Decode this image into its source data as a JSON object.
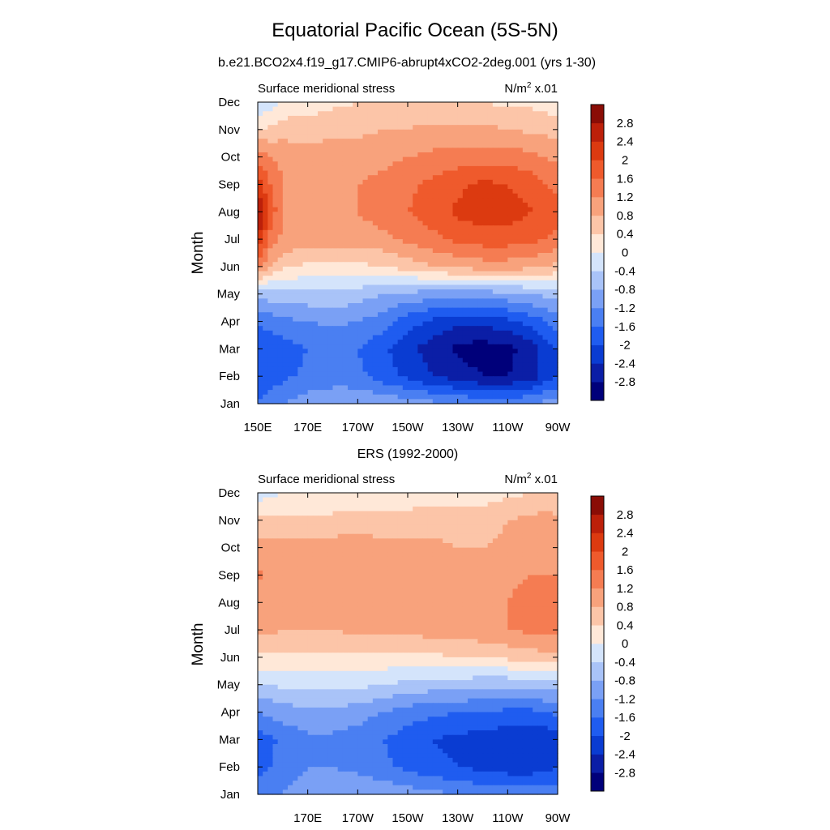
{
  "chart_data": {
    "type": "heatmap",
    "title": "Equatorial Pacific Ocean (5S-5N)",
    "subtitle": "b.e21.BCO2x4.f19_g17.CMIP6-abrupt4xCO2-2deg.001 (yrs 1-30)",
    "colorbar": {
      "colors": [
        "#00007a",
        "#0b1ea6",
        "#0a3cd2",
        "#1f5cf0",
        "#4a7ff2",
        "#7aa0f5",
        "#a9c3f8",
        "#d4e4fb",
        "#ffe8d8",
        "#fcc5a8",
        "#f8a27c",
        "#f57c52",
        "#ef5a2c",
        "#dc3a10",
        "#bc200a",
        "#8a0d06"
      ],
      "labels": [
        "-2.8",
        "-2.4",
        "-2",
        "-1.6",
        "-1.2",
        "-0.8",
        "-0.4",
        "0",
        "0.4",
        "0.8",
        "1.2",
        "1.6",
        "2",
        "2.4",
        "2.8"
      ],
      "levels": [
        -2.8,
        -2.4,
        -2.0,
        -1.6,
        -1.2,
        -0.8,
        -0.4,
        0,
        0.4,
        0.8,
        1.2,
        1.6,
        2.0,
        2.4,
        2.8
      ]
    },
    "panels": [
      {
        "id": "model",
        "title": "",
        "left_label": "Surface meridional stress",
        "unit_base": "N/m",
        "unit_sup": "2",
        "unit_scale": " x.01",
        "ylabel": "Month",
        "xlim": [
          150,
          270
        ],
        "xticks": [
          "150E",
          "170E",
          "170W",
          "150W",
          "130W",
          "110W",
          "90W"
        ],
        "yticks": [
          "Jan",
          "Feb",
          "Mar",
          "Apr",
          "May",
          "Jun",
          "Jul",
          "Aug",
          "Sep",
          "Oct",
          "Nov",
          "Dec"
        ],
        "field": {
          "lon": [
            150,
            155,
            160,
            170,
            180,
            190,
            200,
            210,
            220,
            230,
            240,
            250,
            260,
            265,
            270
          ],
          "months": [
            "Jan",
            "Feb",
            "Mar",
            "Apr",
            "May",
            "Jun",
            "Jul",
            "Aug",
            "Sep",
            "Oct",
            "Nov",
            "Dec"
          ],
          "values": [
            [
              -1.6,
              -1.4,
              -1.2,
              -1.0,
              -0.9,
              -0.8,
              -0.9,
              -1.0,
              -1.1,
              -1.2,
              -1.3,
              -1.3,
              -1.2,
              -1.1,
              -1.0
            ],
            [
              -1.9,
              -1.8,
              -1.7,
              -1.5,
              -1.4,
              -1.5,
              -1.8,
              -2.1,
              -2.4,
              -2.6,
              -2.8,
              -2.8,
              -2.6,
              -2.2,
              -2.0
            ],
            [
              -2.0,
              -1.9,
              -1.8,
              -1.6,
              -1.5,
              -1.6,
              -1.9,
              -2.3,
              -2.6,
              -2.9,
              -3.0,
              -2.9,
              -2.6,
              -2.2,
              -2.0
            ],
            [
              -1.6,
              -1.4,
              -1.3,
              -1.2,
              -1.1,
              -1.2,
              -1.4,
              -1.8,
              -2.1,
              -2.3,
              -2.3,
              -2.1,
              -1.8,
              -1.6,
              -1.4
            ],
            [
              -0.7,
              -0.6,
              -0.6,
              -0.5,
              -0.5,
              -0.6,
              -0.8,
              -0.9,
              -1.0,
              -1.0,
              -1.0,
              -0.9,
              -0.8,
              -0.7,
              -0.6
            ],
            [
              1.4,
              0.8,
              0.5,
              0.3,
              0.3,
              0.3,
              0.4,
              0.6,
              0.8,
              0.9,
              1.0,
              1.0,
              0.9,
              0.8,
              0.7
            ],
            [
              2.4,
              1.4,
              1.1,
              1.0,
              1.0,
              1.0,
              1.1,
              1.3,
              1.5,
              1.7,
              1.8,
              1.8,
              1.7,
              1.6,
              1.5
            ],
            [
              2.9,
              1.9,
              1.2,
              1.1,
              1.1,
              1.2,
              1.4,
              1.6,
              1.8,
              2.1,
              2.2,
              2.2,
              2.0,
              1.8,
              1.7
            ],
            [
              2.2,
              1.6,
              1.2,
              1.1,
              1.1,
              1.2,
              1.3,
              1.5,
              1.7,
              1.9,
              2.1,
              2.0,
              1.8,
              1.6,
              1.5
            ],
            [
              1.4,
              1.2,
              1.1,
              1.0,
              1.0,
              1.0,
              1.1,
              1.2,
              1.3,
              1.4,
              1.4,
              1.4,
              1.3,
              1.2,
              1.1
            ],
            [
              0.4,
              0.5,
              0.6,
              0.6,
              0.7,
              0.7,
              0.8,
              0.8,
              0.9,
              0.9,
              0.9,
              0.8,
              0.7,
              0.7,
              0.6
            ],
            [
              -0.4,
              -0.2,
              0.1,
              0.2,
              0.3,
              0.4,
              0.4,
              0.5,
              0.5,
              0.4,
              0.4,
              0.3,
              0.3,
              0.2,
              0.2
            ]
          ]
        }
      },
      {
        "id": "obs",
        "title": "ERS (1992-2000)",
        "left_label": "Surface meridional stress",
        "unit_base": "N/m",
        "unit_sup": "2",
        "unit_scale": " x.01",
        "ylabel": "Month",
        "xlim": [
          150,
          270
        ],
        "xticks": [
          "170E",
          "170W",
          "150W",
          "130W",
          "110W",
          "90W"
        ],
        "yticks": [
          "Jan",
          "Feb",
          "Mar",
          "Apr",
          "May",
          "Jun",
          "Jul",
          "Aug",
          "Sep",
          "Oct",
          "Nov",
          "Dec"
        ],
        "field": {
          "lon": [
            150,
            155,
            160,
            170,
            180,
            190,
            200,
            210,
            220,
            230,
            240,
            250,
            260,
            265,
            270
          ],
          "months": [
            "Jan",
            "Feb",
            "Mar",
            "Apr",
            "May",
            "Jun",
            "Jul",
            "Aug",
            "Sep",
            "Oct",
            "Nov",
            "Dec"
          ],
          "values": [
            [
              -1.5,
              -1.4,
              -1.2,
              -1.0,
              -0.9,
              -0.9,
              -0.9,
              -1.0,
              -1.1,
              -1.2,
              -1.3,
              -1.4,
              -1.4,
              -1.4,
              -1.3
            ],
            [
              -1.7,
              -1.6,
              -1.4,
              -1.2,
              -1.2,
              -1.3,
              -1.5,
              -1.7,
              -1.9,
              -2.0,
              -2.1,
              -2.2,
              -2.2,
              -2.1,
              -2.0
            ],
            [
              -1.8,
              -1.7,
              -1.5,
              -1.3,
              -1.3,
              -1.4,
              -1.6,
              -1.8,
              -2.0,
              -2.1,
              -2.2,
              -2.3,
              -2.4,
              -2.3,
              -2.2
            ],
            [
              -1.2,
              -1.1,
              -1.0,
              -0.9,
              -0.9,
              -1.0,
              -1.2,
              -1.4,
              -1.5,
              -1.6,
              -1.6,
              -1.7,
              -1.7,
              -1.6,
              -1.5
            ],
            [
              -0.4,
              -0.4,
              -0.3,
              -0.3,
              -0.3,
              -0.3,
              -0.4,
              -0.5,
              -0.6,
              -0.6,
              -0.7,
              -0.7,
              -0.7,
              -0.6,
              -0.6
            ],
            [
              0.3,
              0.3,
              0.3,
              0.3,
              0.3,
              0.3,
              0.3,
              0.3,
              0.3,
              0.4,
              0.4,
              0.5,
              0.6,
              0.7,
              0.7
            ],
            [
              0.9,
              0.9,
              0.8,
              0.8,
              0.8,
              0.9,
              0.9,
              0.9,
              1.0,
              1.0,
              1.1,
              1.2,
              1.3,
              1.3,
              1.3
            ],
            [
              1.0,
              0.9,
              0.9,
              0.9,
              0.9,
              0.9,
              1.0,
              1.0,
              1.0,
              1.0,
              1.1,
              1.2,
              1.4,
              1.4,
              1.3
            ],
            [
              1.3,
              1.0,
              0.9,
              0.9,
              1.0,
              1.0,
              1.0,
              1.0,
              1.0,
              1.0,
              1.0,
              1.1,
              1.2,
              1.2,
              1.2
            ],
            [
              1.0,
              1.0,
              0.9,
              0.9,
              1.0,
              1.0,
              0.9,
              0.9,
              0.9,
              0.8,
              0.8,
              0.9,
              1.0,
              1.1,
              1.2
            ],
            [
              0.5,
              0.5,
              0.5,
              0.5,
              0.5,
              0.6,
              0.6,
              0.6,
              0.6,
              0.6,
              0.6,
              0.8,
              0.9,
              1.0,
              0.9
            ],
            [
              -0.2,
              -0.1,
              0.0,
              0.0,
              0.1,
              0.1,
              0.1,
              0.1,
              0.2,
              0.2,
              0.2,
              0.3,
              0.4,
              0.4,
              0.4
            ]
          ]
        }
      }
    ]
  }
}
